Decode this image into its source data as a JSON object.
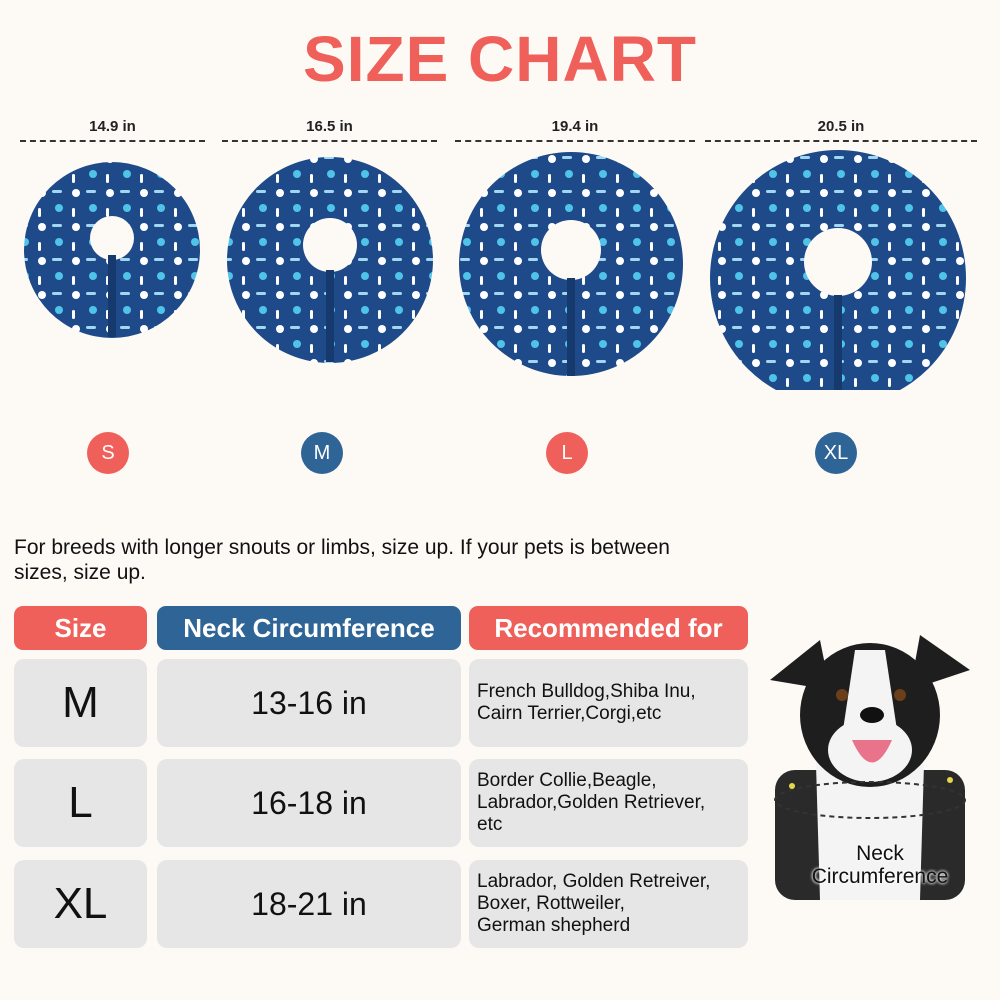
{
  "title": "SIZE CHART",
  "colors": {
    "red": "#f0605a",
    "blue": "#2f6497",
    "collar": "#1e4a8a"
  },
  "collars": [
    {
      "size": "S",
      "width": "14.9 in",
      "badge_color": "#f0605a"
    },
    {
      "size": "M",
      "width": "16.5 in",
      "badge_color": "#2f6497"
    },
    {
      "size": "L",
      "width": "19.4 in",
      "badge_color": "#f0605a"
    },
    {
      "size": "XL",
      "width": "20.5 in",
      "badge_color": "#2f6497"
    }
  ],
  "note": "For breeds with longer snouts or limbs, size up. If your pets is between sizes, size up.",
  "table": {
    "headers": [
      "Size",
      "Neck Circumference",
      "Recommended for"
    ],
    "rows": [
      {
        "size": "M",
        "neck": "13-16 in",
        "rec": "French Bulldog,Shiba Inu,\nCairn Terrier,Corgi,etc"
      },
      {
        "size": "L",
        "neck": "16-18 in",
        "rec": "Border Collie,Beagle,\nLabrador,Golden Retriever,\netc"
      },
      {
        "size": "XL",
        "neck": "18-21 in",
        "rec": "Labrador, Golden Retreiver,\nBoxer, Rottweiler,\nGerman shepherd"
      }
    ]
  },
  "dog_label": "Neck\nCircumference"
}
